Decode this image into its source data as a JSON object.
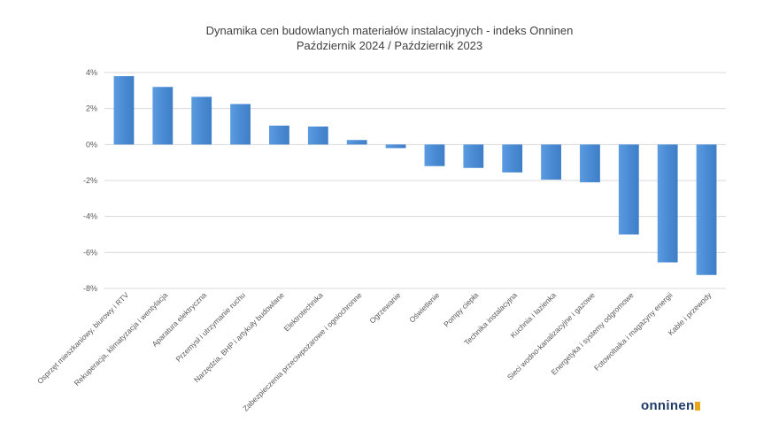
{
  "chart_data": {
    "type": "bar",
    "title": "Dynamika cen budowlanych materiałów instalacyjnych - indeks Onninen",
    "subtitle": "Październik 2024 / Październik 2023",
    "categories": [
      "Osprzęt mieszkaniowy, biurowy i RTV",
      "Rekuperacja, klimatyzacja i wentylacja",
      "Aparatura elektryczna",
      "Przemysł i utrzymanie ruchu",
      "Narzędzia, BHP i artykuły budowlane",
      "Elektrotechnika",
      "Zabezpieczenia przeciwpożarowe i ogniochronne",
      "Ogrzewanie",
      "Oświetlenie",
      "Pompy ciepła",
      "Technika instalacyjna",
      "Kuchnia i łazienka",
      "Sieci wodno-kanalizacyjne i gazowe",
      "Energetyka i systemy odgromowe",
      "Fotowoltaika i magazyny energii",
      "Kable i przewody"
    ],
    "values": [
      3.8,
      3.2,
      2.65,
      2.25,
      1.05,
      1.0,
      0.25,
      -0.2,
      -1.2,
      -1.3,
      -1.55,
      -1.95,
      -2.1,
      -5.0,
      -6.55,
      -7.25
    ],
    "ylim": [
      -8,
      4
    ],
    "yticks": [
      4,
      2,
      0,
      -2,
      -4,
      -6,
      -8
    ],
    "ytick_labels": [
      "4%",
      "2%",
      "0%",
      "-2%",
      "-4%",
      "-6%",
      "-8%"
    ],
    "grid": true,
    "bar_color": "#4f8fd6",
    "bar_color_light": "#6aa6e6",
    "grid_color": "#d9d9d9"
  },
  "logo": {
    "text": "onninen"
  }
}
